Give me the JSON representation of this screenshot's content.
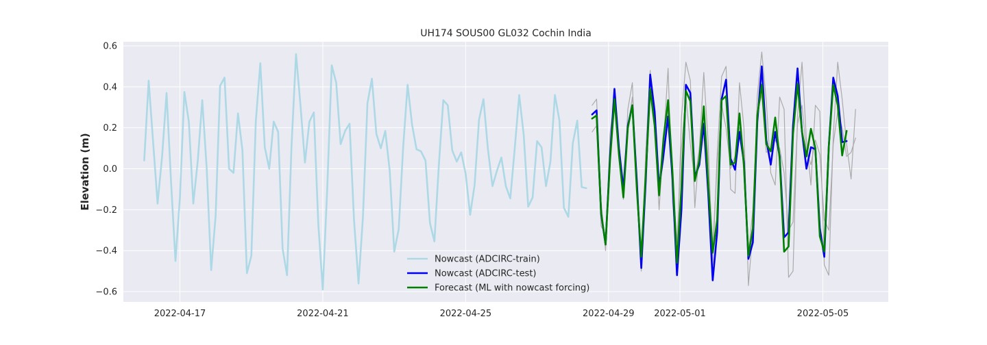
{
  "chart_data": {
    "type": "line",
    "title": "UH174 SOUS00 GL032 Cochin India",
    "xlabel": "",
    "ylabel": "Elevation (m)",
    "xlim": [
      "2022-04-15T10:00",
      "2022-05-06T20:00"
    ],
    "ylim": [
      -0.65,
      0.62
    ],
    "x_ticks": [
      "2022-04-17",
      "2022-04-21",
      "2022-04-25",
      "2022-04-29",
      "2022-05-01",
      "2022-05-05"
    ],
    "y_ticks": [
      -0.6,
      -0.4,
      -0.2,
      0.0,
      0.2,
      0.4,
      0.6
    ],
    "y_tick_labels": [
      "−0.6",
      "−0.4",
      "−0.2",
      "0.0",
      "0.2",
      "0.4",
      "0.6"
    ],
    "grid": true,
    "background": "#eaeaf2",
    "legend_position": "lower center",
    "series": [
      {
        "key": "train",
        "name": "Nowcast (ADCIRC-train)",
        "color": "#add8e6",
        "width": 2.6,
        "in_legend": true,
        "x_start": "2022-04-16T00:00",
        "x_step_hours": 3,
        "values": [
          0.04,
          0.43,
          0.13,
          -0.17,
          0.06,
          0.37,
          -0.06,
          -0.45,
          -0.14,
          0.375,
          0.23,
          -0.17,
          0.04,
          0.335,
          0.0,
          -0.495,
          -0.23,
          0.405,
          0.445,
          0.0,
          -0.02,
          0.27,
          0.09,
          -0.51,
          -0.425,
          0.23,
          0.515,
          0.105,
          0.0,
          0.23,
          0.18,
          -0.39,
          -0.52,
          0.11,
          0.56,
          0.31,
          0.03,
          0.23,
          0.275,
          -0.27,
          -0.59,
          -0.09,
          0.505,
          0.42,
          0.12,
          0.185,
          0.22,
          -0.25,
          -0.56,
          -0.23,
          0.32,
          0.44,
          0.17,
          0.1,
          0.185,
          -0.01,
          -0.405,
          -0.295,
          0.105,
          0.41,
          0.215,
          0.095,
          0.085,
          0.04,
          -0.265,
          -0.355,
          0.02,
          0.335,
          0.31,
          0.09,
          0.035,
          0.08,
          -0.025,
          -0.225,
          -0.08,
          0.24,
          0.34,
          0.095,
          -0.085,
          -0.01,
          0.055,
          -0.085,
          -0.145,
          0.1,
          0.36,
          0.165,
          -0.185,
          -0.14,
          0.135,
          0.105,
          -0.085,
          0.035,
          0.36,
          0.235,
          -0.19,
          -0.235,
          0.125,
          0.235,
          -0.09,
          -0.095
        ]
      },
      {
        "key": "ensemble",
        "name": "",
        "color": "#aaaaaa",
        "width": 1.2,
        "in_legend": false,
        "x_start": "2022-04-28T13:00",
        "x_step_hours": 3,
        "multi": [
          [
            0.31,
            0.34,
            -0.16,
            -0.4,
            0.17,
            0.34,
            0.05,
            -0.15,
            0.29,
            0.42,
            -0.12,
            -0.5,
            0.08,
            0.48,
            0.2,
            -0.2,
            0.13,
            0.49,
            -0.16,
            -0.44,
            0.25,
            0.52,
            0.43,
            -0.19,
            0.1,
            0.47,
            0.12,
            -0.47,
            0.07,
            0.45,
            0.5,
            -0.1,
            -0.12,
            0.42,
            0.2,
            -0.57,
            -0.3,
            0.36,
            0.57,
            0.33,
            -0.02,
            -0.08,
            0.35,
            0.29,
            -0.53,
            -0.5,
            0.26,
            0.52,
            0.14,
            -0.08,
            0.31,
            0.28,
            -0.47,
            -0.52,
            0.16,
            0.52,
            0.34,
            0.12,
            -0.05,
            0.29
          ],
          [
            0.18,
            0.21,
            -0.28,
            -0.32,
            0.05,
            0.3,
            0.12,
            -0.07,
            0.2,
            0.35,
            -0.03,
            -0.44,
            -0.02,
            0.35,
            0.28,
            -0.1,
            0.04,
            0.3,
            -0.05,
            -0.36,
            0.1,
            0.36,
            0.12,
            -0.06,
            0.1,
            0.29,
            0.04,
            -0.38,
            0.01,
            0.31,
            0.2,
            0.0,
            0.06,
            0.2,
            0.08,
            -0.41,
            -0.2,
            0.28,
            0.36,
            0.08,
            0.09,
            0.14,
            0.1,
            -0.02,
            -0.3,
            -0.26,
            0.22,
            0.31,
            0.08,
            0.02,
            0.14,
            0.07,
            -0.25,
            -0.3,
            0.12,
            0.28,
            0.2,
            0.06,
            0.08,
            0.15
          ]
        ]
      },
      {
        "key": "test",
        "name": "Nowcast (ADCIRC-test)",
        "color": "#0000ee",
        "width": 2.6,
        "in_legend": true,
        "x_start": "2022-04-28T13:00",
        "x_step_hours": 3,
        "values": [
          0.265,
          0.285,
          -0.22,
          -0.37,
          0.06,
          0.39,
          0.1,
          -0.1,
          0.21,
          0.31,
          -0.06,
          -0.485,
          -0.06,
          0.46,
          0.28,
          -0.09,
          0.07,
          0.255,
          -0.05,
          -0.52,
          -0.2,
          0.41,
          0.37,
          -0.04,
          0.02,
          0.22,
          -0.12,
          -0.545,
          -0.31,
          0.34,
          0.435,
          0.05,
          -0.005,
          0.18,
          0.03,
          -0.44,
          -0.36,
          0.23,
          0.5,
          0.14,
          0.02,
          0.18,
          0.06,
          -0.335,
          -0.31,
          0.21,
          0.49,
          0.18,
          0.0,
          0.105,
          0.095,
          -0.29,
          -0.43,
          0.11,
          0.445,
          0.355,
          0.13,
          0.135
        ]
      },
      {
        "key": "forecast",
        "name": "Forecast (ML with nowcast forcing)",
        "color": "#008000",
        "width": 2.6,
        "in_legend": true,
        "x_start": "2022-04-28T13:00",
        "x_step_hours": 3,
        "values": [
          0.245,
          0.26,
          -0.215,
          -0.37,
          0.04,
          0.34,
          0.07,
          -0.14,
          0.2,
          0.31,
          -0.1,
          -0.43,
          -0.03,
          0.39,
          0.21,
          -0.13,
          0.15,
          0.335,
          -0.02,
          -0.46,
          -0.09,
          0.38,
          0.33,
          -0.06,
          0.04,
          0.305,
          -0.08,
          -0.41,
          -0.25,
          0.335,
          0.355,
          0.02,
          0.03,
          0.27,
          0.01,
          -0.425,
          -0.29,
          0.26,
          0.41,
          0.12,
          0.085,
          0.25,
          0.05,
          -0.405,
          -0.38,
          0.17,
          0.415,
          0.18,
          0.06,
          0.195,
          0.1,
          -0.33,
          -0.405,
          0.11,
          0.41,
          0.31,
          0.065,
          0.185
        ]
      }
    ]
  }
}
